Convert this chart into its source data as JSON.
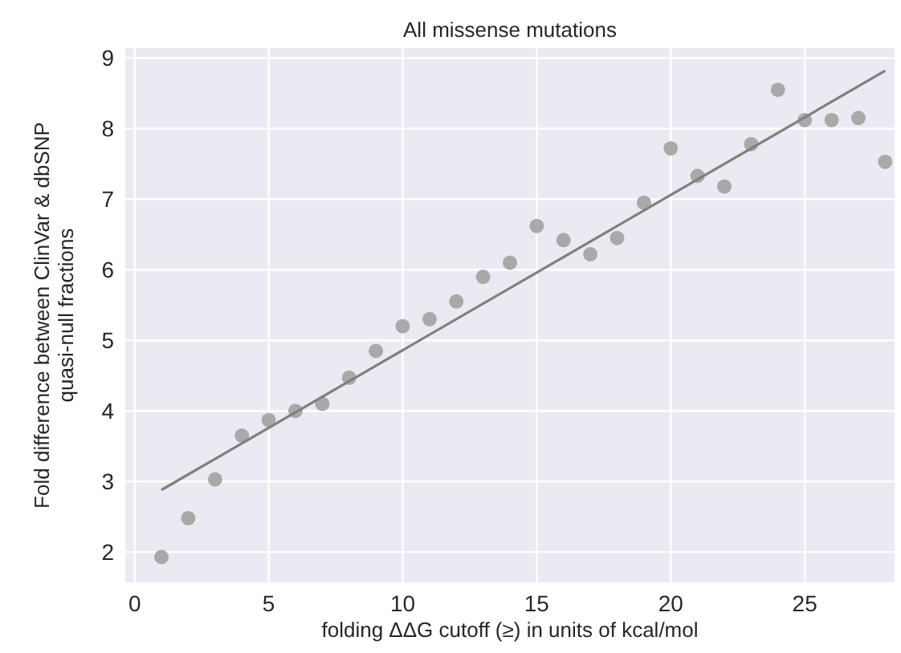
{
  "chart_data": {
    "type": "scatter",
    "title": "All missense mutations",
    "xlabel": "folding ΔΔG cutoff (≥) in units of kcal/mol",
    "ylabel": "Fold difference between ClinVar & dbSNP\nquasi-null fractions",
    "xlim": [
      -0.35,
      28.35
    ],
    "ylim": [
      1.57,
      9.14
    ],
    "xticks": [
      0,
      5,
      10,
      15,
      20,
      25
    ],
    "yticks": [
      2,
      3,
      4,
      5,
      6,
      7,
      8,
      9
    ],
    "grid": true,
    "marker": "circle",
    "series": [
      {
        "color": "#a9a9a9",
        "x": [
          1,
          2,
          3,
          4,
          5,
          6,
          7,
          8,
          9,
          10,
          11,
          12,
          13,
          14,
          15,
          16,
          17,
          18,
          19,
          20,
          21,
          22,
          23,
          24,
          25,
          26,
          27,
          28
        ],
        "values": [
          1.93,
          2.48,
          3.03,
          3.65,
          3.87,
          4.0,
          4.1,
          4.47,
          4.85,
          5.2,
          5.3,
          5.55,
          5.9,
          6.1,
          6.62,
          6.42,
          6.22,
          6.45,
          6.95,
          7.72,
          7.33,
          7.18,
          7.78,
          8.55,
          8.12,
          8.12,
          8.15,
          7.53
        ]
      },
      {
        "type": "line",
        "color": "#808080",
        "marker": "none",
        "x": [
          1,
          28
        ],
        "values": [
          2.88,
          8.82
        ]
      }
    ]
  }
}
